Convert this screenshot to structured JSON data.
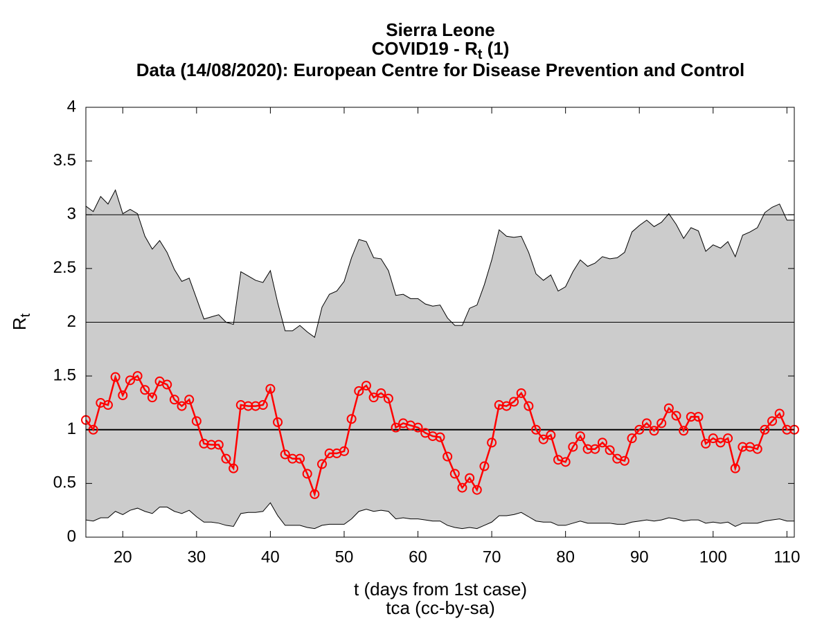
{
  "chart_data": {
    "type": "line",
    "title": "Sierra Leone",
    "subtitle": {
      "text": "COVID19 - R",
      "sub": "t",
      "suffix": " (1)"
    },
    "source": "Data (14/08/2020): European Centre for Disease Prevention and Control",
    "xlabel": "t (days from 1st case)",
    "ylabel": {
      "text": "R",
      "sub": "t"
    },
    "caption": "tca (cc-by-sa)",
    "xlim": [
      15,
      111
    ],
    "ylim": [
      0,
      4
    ],
    "xticks": [
      20,
      30,
      40,
      50,
      60,
      70,
      80,
      90,
      100,
      110
    ],
    "yticks": [
      0,
      0.5,
      1,
      1.5,
      2,
      2.5,
      3,
      3.5,
      4
    ],
    "reference_lines": [
      1,
      2,
      3
    ],
    "color": "#ff0000",
    "band_color": "#cccccc",
    "x": [
      15,
      16,
      17,
      18,
      19,
      20,
      21,
      22,
      23,
      24,
      25,
      26,
      27,
      28,
      29,
      30,
      31,
      32,
      33,
      34,
      35,
      36,
      37,
      38,
      39,
      40,
      41,
      42,
      43,
      44,
      45,
      46,
      47,
      48,
      49,
      50,
      51,
      52,
      53,
      54,
      55,
      56,
      57,
      58,
      59,
      60,
      61,
      62,
      63,
      64,
      65,
      66,
      67,
      68,
      69,
      70,
      71,
      72,
      73,
      74,
      75,
      76,
      77,
      78,
      79,
      80,
      81,
      82,
      83,
      84,
      85,
      86,
      87,
      88,
      89,
      90,
      91,
      92,
      93,
      94,
      95,
      96,
      97,
      98,
      99,
      100,
      101,
      102,
      103,
      104,
      105,
      106,
      107,
      108,
      109,
      110,
      111
    ],
    "values": [
      1.09,
      1.0,
      1.25,
      1.23,
      1.49,
      1.32,
      1.46,
      1.5,
      1.37,
      1.3,
      1.45,
      1.42,
      1.28,
      1.22,
      1.28,
      1.08,
      0.87,
      0.86,
      0.86,
      0.73,
      0.64,
      1.23,
      1.22,
      1.22,
      1.23,
      1.38,
      1.07,
      0.77,
      0.73,
      0.73,
      0.59,
      0.4,
      0.68,
      0.78,
      0.78,
      0.8,
      1.1,
      1.36,
      1.41,
      1.3,
      1.34,
      1.29,
      1.02,
      1.06,
      1.04,
      1.02,
      0.97,
      0.94,
      0.93,
      0.75,
      0.59,
      0.46,
      0.55,
      0.44,
      0.66,
      0.88,
      1.23,
      1.22,
      1.26,
      1.34,
      1.22,
      1.0,
      0.91,
      0.95,
      0.72,
      0.7,
      0.84,
      0.94,
      0.82,
      0.82,
      0.88,
      0.81,
      0.73,
      0.71,
      0.92,
      1.0,
      1.06,
      0.99,
      1.06,
      1.2,
      1.13,
      0.99,
      1.12,
      1.12,
      0.87,
      0.92,
      0.88,
      0.92,
      0.64,
      0.84,
      0.84,
      0.82,
      1.0,
      1.08,
      1.15,
      1.0,
      1.0
    ],
    "upper": [
      3.08,
      3.03,
      3.17,
      3.1,
      3.23,
      3.01,
      3.05,
      3.01,
      2.8,
      2.68,
      2.76,
      2.65,
      2.49,
      2.38,
      2.41,
      2.22,
      2.03,
      2.05,
      2.07,
      2.0,
      1.98,
      2.47,
      2.43,
      2.39,
      2.37,
      2.48,
      2.18,
      1.92,
      1.92,
      1.97,
      1.91,
      1.86,
      2.14,
      2.26,
      2.29,
      2.38,
      2.6,
      2.77,
      2.75,
      2.6,
      2.59,
      2.48,
      2.25,
      2.26,
      2.22,
      2.22,
      2.17,
      2.15,
      2.16,
      2.04,
      1.97,
      1.97,
      2.13,
      2.16,
      2.35,
      2.58,
      2.86,
      2.8,
      2.79,
      2.8,
      2.65,
      2.45,
      2.39,
      2.44,
      2.29,
      2.33,
      2.47,
      2.58,
      2.52,
      2.55,
      2.61,
      2.59,
      2.6,
      2.65,
      2.84,
      2.9,
      2.95,
      2.89,
      2.93,
      3.01,
      2.91,
      2.78,
      2.88,
      2.85,
      2.66,
      2.72,
      2.69,
      2.75,
      2.61,
      2.81,
      2.84,
      2.88,
      3.02,
      3.07,
      3.1,
      2.95,
      2.95
    ],
    "lower": [
      0.16,
      0.15,
      0.18,
      0.18,
      0.24,
      0.21,
      0.25,
      0.27,
      0.24,
      0.22,
      0.28,
      0.28,
      0.24,
      0.22,
      0.25,
      0.19,
      0.14,
      0.14,
      0.13,
      0.11,
      0.1,
      0.22,
      0.23,
      0.23,
      0.24,
      0.32,
      0.2,
      0.11,
      0.11,
      0.11,
      0.09,
      0.08,
      0.11,
      0.12,
      0.12,
      0.12,
      0.17,
      0.24,
      0.26,
      0.24,
      0.25,
      0.24,
      0.17,
      0.18,
      0.17,
      0.17,
      0.16,
      0.15,
      0.15,
      0.11,
      0.09,
      0.08,
      0.09,
      0.08,
      0.11,
      0.14,
      0.2,
      0.2,
      0.21,
      0.23,
      0.19,
      0.15,
      0.14,
      0.14,
      0.11,
      0.11,
      0.13,
      0.15,
      0.13,
      0.13,
      0.13,
      0.13,
      0.12,
      0.12,
      0.14,
      0.15,
      0.16,
      0.15,
      0.16,
      0.18,
      0.17,
      0.15,
      0.16,
      0.16,
      0.13,
      0.14,
      0.13,
      0.14,
      0.1,
      0.13,
      0.13,
      0.13,
      0.15,
      0.16,
      0.17,
      0.15,
      0.15
    ]
  }
}
